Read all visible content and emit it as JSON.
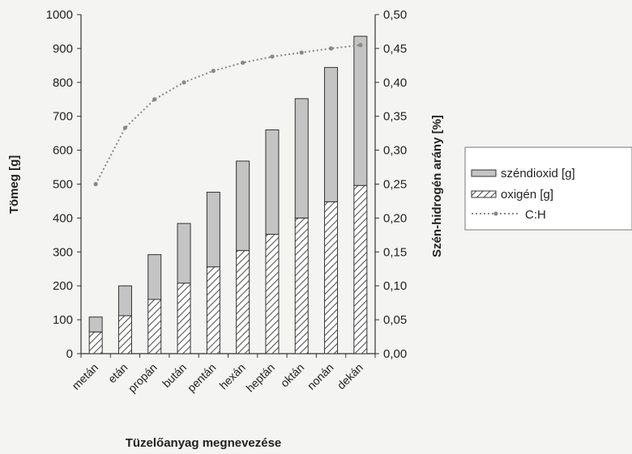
{
  "chart_data": {
    "type": "bar",
    "stacked": true,
    "categories": [
      "metán",
      "etán",
      "propán",
      "bután",
      "pentán",
      "hexán",
      "heptán",
      "oktán",
      "nonán",
      "dekán"
    ],
    "series": [
      {
        "name": "oxigén [g]",
        "type": "bar",
        "axis": "left",
        "values": [
          64,
          112,
          160,
          208,
          256,
          304,
          352,
          400,
          448,
          496
        ]
      },
      {
        "name": "széndioxid [g]",
        "type": "bar",
        "axis": "left",
        "values": [
          44,
          88,
          132,
          176,
          220,
          264,
          308,
          352,
          396,
          440
        ]
      },
      {
        "name": "C:H",
        "type": "line",
        "axis": "right",
        "values": [
          0.25,
          0.333,
          0.375,
          0.4,
          0.417,
          0.429,
          0.438,
          0.444,
          0.45,
          0.455
        ]
      }
    ],
    "xlabel": "Tüzelőanyag megnevezése",
    "ylabel": "Tömeg [g]",
    "y2label": "Szén-hidrogén arány [%]",
    "ylim": [
      0,
      1000
    ],
    "y2lim": [
      0,
      0.5
    ],
    "yticks": [
      "0",
      "100",
      "200",
      "300",
      "400",
      "500",
      "600",
      "700",
      "800",
      "900",
      "1000"
    ],
    "y2ticks": [
      "0,00",
      "0,05",
      "0,10",
      "0,15",
      "0,20",
      "0,25",
      "0,30",
      "0,35",
      "0,40",
      "0,45",
      "0,50"
    ],
    "legend": {
      "placement": "right",
      "entries": [
        "széndioxid [g]",
        "oxigén [g]",
        "C:H"
      ]
    },
    "grid": false,
    "colors": {
      "co2_fill": "#c4c4c4",
      "o2_fill": "#ffffff",
      "o2_hatch": "#555555",
      "line": "#888888",
      "outline": "#333333"
    }
  }
}
